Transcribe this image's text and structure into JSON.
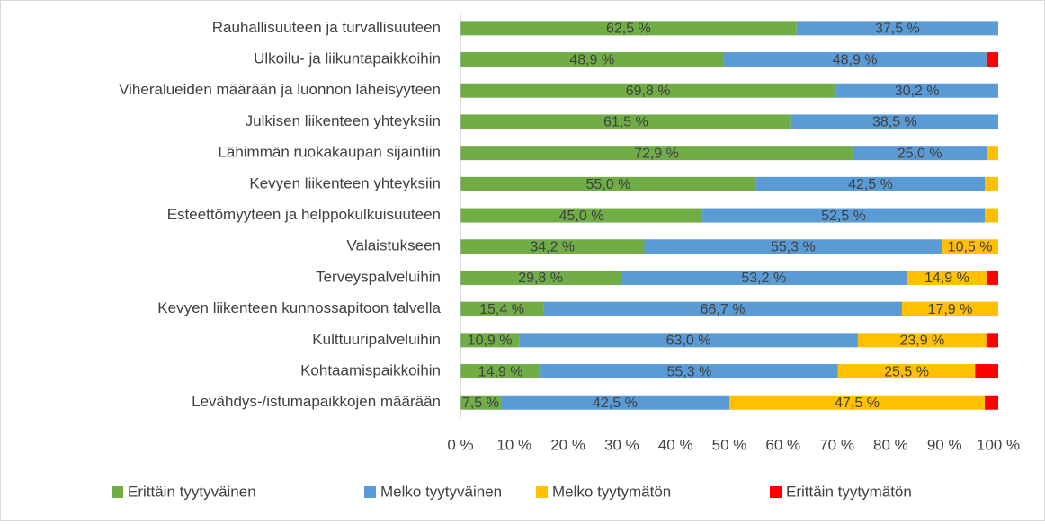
{
  "chart_data": {
    "type": "stacked-bar-horizontal",
    "categories": [
      "Rauhallisuuteen ja turvallisuuteen",
      "Ulkoilu- ja liikuntapaikkoihin",
      "Viheralueiden määrään ja luonnon läheisyyteen",
      "Julkisen liikenteen yhteyksiin",
      "Lähimmän ruokakaupan sijaintiin",
      "Kevyen liikenteen yhteyksiin",
      "Esteettömyyteen ja helppokulkuisuuteen",
      "Valaistukseen",
      "Terveyspalveluihin",
      "Kevyen liikenteen kunnossapitoon talvella",
      "Kulttuuripalveluihin",
      "Kohtaamispaikkoihin",
      "Levähdys-/istumapaikkojen määrään"
    ],
    "series": [
      {
        "name": "Erittäin tyytyväinen",
        "color": "#70ad47",
        "values": [
          62.5,
          48.9,
          69.8,
          61.5,
          72.9,
          55.0,
          45.0,
          34.2,
          29.8,
          15.4,
          10.9,
          14.9,
          7.5
        ],
        "value_labels": [
          "62,5 %",
          "48,9 %",
          "69,8 %",
          "61,5 %",
          "72,9 %",
          "55,0 %",
          "45,0 %",
          "34,2 %",
          "29,8 %",
          "15,4 %",
          "10,9 %",
          "14,9 %",
          "7,5 %"
        ]
      },
      {
        "name": "Melko tyytyväinen",
        "color": "#5b9bd5",
        "values": [
          37.5,
          48.9,
          30.2,
          38.5,
          25.0,
          42.5,
          52.5,
          55.3,
          53.2,
          66.7,
          63.0,
          55.3,
          42.5
        ],
        "value_labels": [
          "37,5 %",
          "48,9 %",
          "30,2 %",
          "38,5 %",
          "25,0 %",
          "42,5 %",
          "52,5 %",
          "55,3 %",
          "53,2 %",
          "66,7 %",
          "63,0 %",
          "55,3 %",
          "42,5 %"
        ]
      },
      {
        "name": "Melko tyytymätön",
        "color": "#ffc000",
        "values": [
          0,
          0,
          0,
          0,
          2.1,
          2.5,
          2.5,
          10.5,
          14.9,
          17.9,
          23.9,
          25.5,
          47.5
        ],
        "value_labels": [
          null,
          null,
          null,
          null,
          null,
          null,
          null,
          "10,5 %",
          "14,9 %",
          "17,9 %",
          "23,9 %",
          "25,5 %",
          "47,5 %"
        ]
      },
      {
        "name": "Erittäin tyytymätön",
        "color": "#ff0000",
        "values": [
          0,
          2.2,
          0,
          0,
          0,
          0,
          0,
          0,
          2.1,
          0,
          2.2,
          4.3,
          2.5
        ],
        "value_labels": [
          null,
          null,
          null,
          null,
          null,
          null,
          null,
          null,
          null,
          null,
          null,
          null,
          null
        ]
      }
    ],
    "xlim": [
      0,
      100
    ],
    "xticks": [
      {
        "value": 0,
        "label": "0 %"
      },
      {
        "value": 10,
        "label": "10 %"
      },
      {
        "value": 20,
        "label": "20 %"
      },
      {
        "value": 30,
        "label": "30 %"
      },
      {
        "value": 40,
        "label": "40 %"
      },
      {
        "value": 50,
        "label": "50 %"
      },
      {
        "value": 60,
        "label": "60 %"
      },
      {
        "value": 70,
        "label": "70 %"
      },
      {
        "value": 80,
        "label": "80 %"
      },
      {
        "value": 90,
        "label": "90 %"
      },
      {
        "value": 100,
        "label": "100 %"
      }
    ],
    "grid": false,
    "legend": "bottom"
  }
}
